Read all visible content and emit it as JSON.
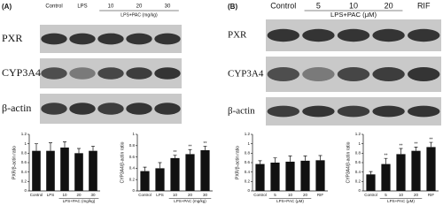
{
  "figure": {
    "panels": [
      {
        "label": "(A)",
        "header": {
          "columns": [
            "Control",
            "LPS",
            "10",
            "20",
            "30"
          ],
          "group_label": "LPS+PAC (mg/kg)"
        },
        "blots": [
          "PXR",
          "CYP3A4",
          "β-actin"
        ]
      },
      {
        "label": "(B)",
        "header": {
          "columns": [
            "Control",
            "5",
            "10",
            "20",
            "RIF"
          ],
          "group_label": "LPS+PAC (μM)"
        },
        "blots": [
          "PXR",
          "CYP3A4",
          "β-actin"
        ]
      }
    ]
  },
  "chart_data": [
    {
      "type": "bar",
      "ylabel": "PXR/β-actin ratio",
      "categories": [
        "Control",
        "LPS",
        "10",
        "20",
        "30"
      ],
      "group_label": "LPS+PAC (mg/kg)",
      "values": [
        0.85,
        0.85,
        0.92,
        0.8,
        0.85
      ],
      "errors": [
        0.15,
        0.17,
        0.12,
        0.1,
        0.1
      ],
      "significance": [
        null,
        null,
        null,
        null,
        null
      ],
      "color": "#111111",
      "ylim": [
        0,
        1.2
      ],
      "yticks": [
        0,
        0.2,
        0.4,
        0.6,
        0.8,
        1,
        1.2
      ]
    },
    {
      "type": "bar",
      "ylabel": "CYP3A4/β-actin ratio",
      "categories": [
        "Control",
        "LPS",
        "10",
        "20",
        "30"
      ],
      "group_label": "LPS+PAC (mg/kg)",
      "values": [
        0.35,
        0.4,
        0.58,
        0.65,
        0.72
      ],
      "errors": [
        0.07,
        0.1,
        0.05,
        0.08,
        0.07
      ],
      "significance": [
        null,
        null,
        "**",
        "**",
        "**"
      ],
      "color": "#111111",
      "ylim": [
        0,
        1
      ],
      "yticks": [
        0,
        0.2,
        0.4,
        0.6,
        0.8,
        1
      ]
    },
    {
      "type": "bar",
      "ylabel": "PXR/β-actin ratio",
      "categories": [
        "Control",
        "5",
        "10",
        "20",
        "RIF"
      ],
      "group_label": "LPS+PAC (μM)",
      "values": [
        0.57,
        0.6,
        0.62,
        0.64,
        0.65
      ],
      "errors": [
        0.07,
        0.1,
        0.12,
        0.1,
        0.1
      ],
      "significance": [
        null,
        null,
        null,
        null,
        null
      ],
      "color": "#111111",
      "ylim": [
        0,
        1.2
      ],
      "yticks": [
        0,
        0.2,
        0.4,
        0.6,
        0.8,
        1,
        1.2
      ]
    },
    {
      "type": "bar",
      "ylabel": "CYP3A4/β-actin ratio",
      "categories": [
        "Control",
        "5",
        "10",
        "20",
        "RIF"
      ],
      "group_label": "LPS+PAC (μM)",
      "values": [
        0.35,
        0.57,
        0.78,
        0.85,
        0.93
      ],
      "errors": [
        0.06,
        0.12,
        0.12,
        0.08,
        0.1
      ],
      "significance": [
        null,
        "**",
        "**",
        "**",
        "**"
      ],
      "color": "#111111",
      "ylim": [
        0,
        1.2
      ],
      "yticks": [
        0,
        0.2,
        0.4,
        0.6,
        0.8,
        1,
        1.2
      ]
    }
  ]
}
